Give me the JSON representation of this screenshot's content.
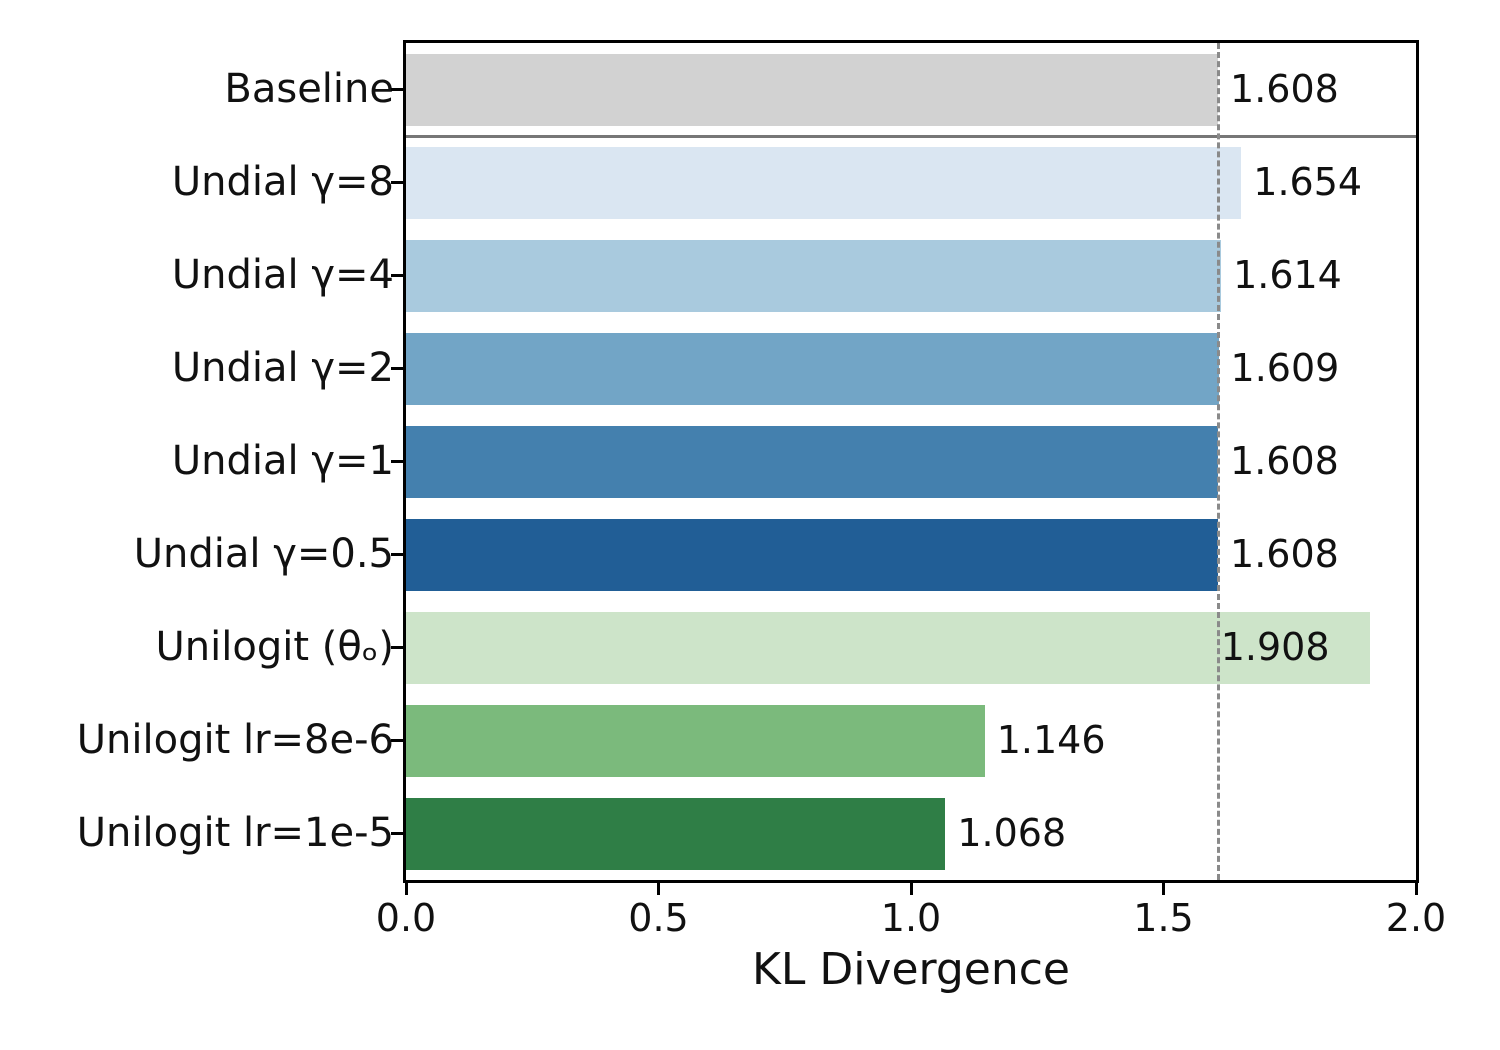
{
  "chart_data": {
    "type": "bar",
    "orientation": "horizontal",
    "title": "",
    "xlabel": "KL Divergence",
    "ylabel": "",
    "xlim": [
      0,
      2.0
    ],
    "grid": false,
    "legend": false,
    "xticks": [
      {
        "value": 0.0,
        "label": "0.0"
      },
      {
        "value": 0.5,
        "label": "0.5"
      },
      {
        "value": 1.0,
        "label": "1.0"
      },
      {
        "value": 1.5,
        "label": "1.5"
      },
      {
        "value": 2.0,
        "label": "2.0"
      }
    ],
    "rows": [
      {
        "label": "Baseline",
        "value": 1.608,
        "value_label": "1.608",
        "color": "#d2d2d2",
        "label_placement": "outside"
      },
      {
        "label": "Undial γ=8",
        "value": 1.654,
        "value_label": "1.654",
        "color": "#dae6f2",
        "label_placement": "outside"
      },
      {
        "label": "Undial γ=4",
        "value": 1.614,
        "value_label": "1.614",
        "color": "#a9cade",
        "label_placement": "outside"
      },
      {
        "label": "Undial γ=2",
        "value": 1.609,
        "value_label": "1.609",
        "color": "#72a5c6",
        "label_placement": "outside"
      },
      {
        "label": "Undial γ=1",
        "value": 1.608,
        "value_label": "1.608",
        "color": "#4480ae",
        "label_placement": "outside"
      },
      {
        "label": "Undial γ=0.5",
        "value": 1.608,
        "value_label": "1.608",
        "color": "#215e96",
        "label_placement": "outside"
      },
      {
        "label": "Unilogit (θₒ)",
        "value": 1.908,
        "value_label": "1.908",
        "color": "#cde4c9",
        "label_placement": "inside"
      },
      {
        "label": "Unilogit lr=8e-6",
        "value": 1.146,
        "value_label": "1.146",
        "color": "#7bba7c",
        "label_placement": "outside"
      },
      {
        "label": "Unilogit lr=1e-5",
        "value": 1.068,
        "value_label": "1.068",
        "color": "#2f7e46",
        "label_placement": "outside"
      }
    ],
    "reference_line": {
      "value": 1.608,
      "style": "dashed",
      "color": "#8a8a8a"
    },
    "separator": {
      "after_row_index": 0,
      "color": "#777777"
    }
  }
}
